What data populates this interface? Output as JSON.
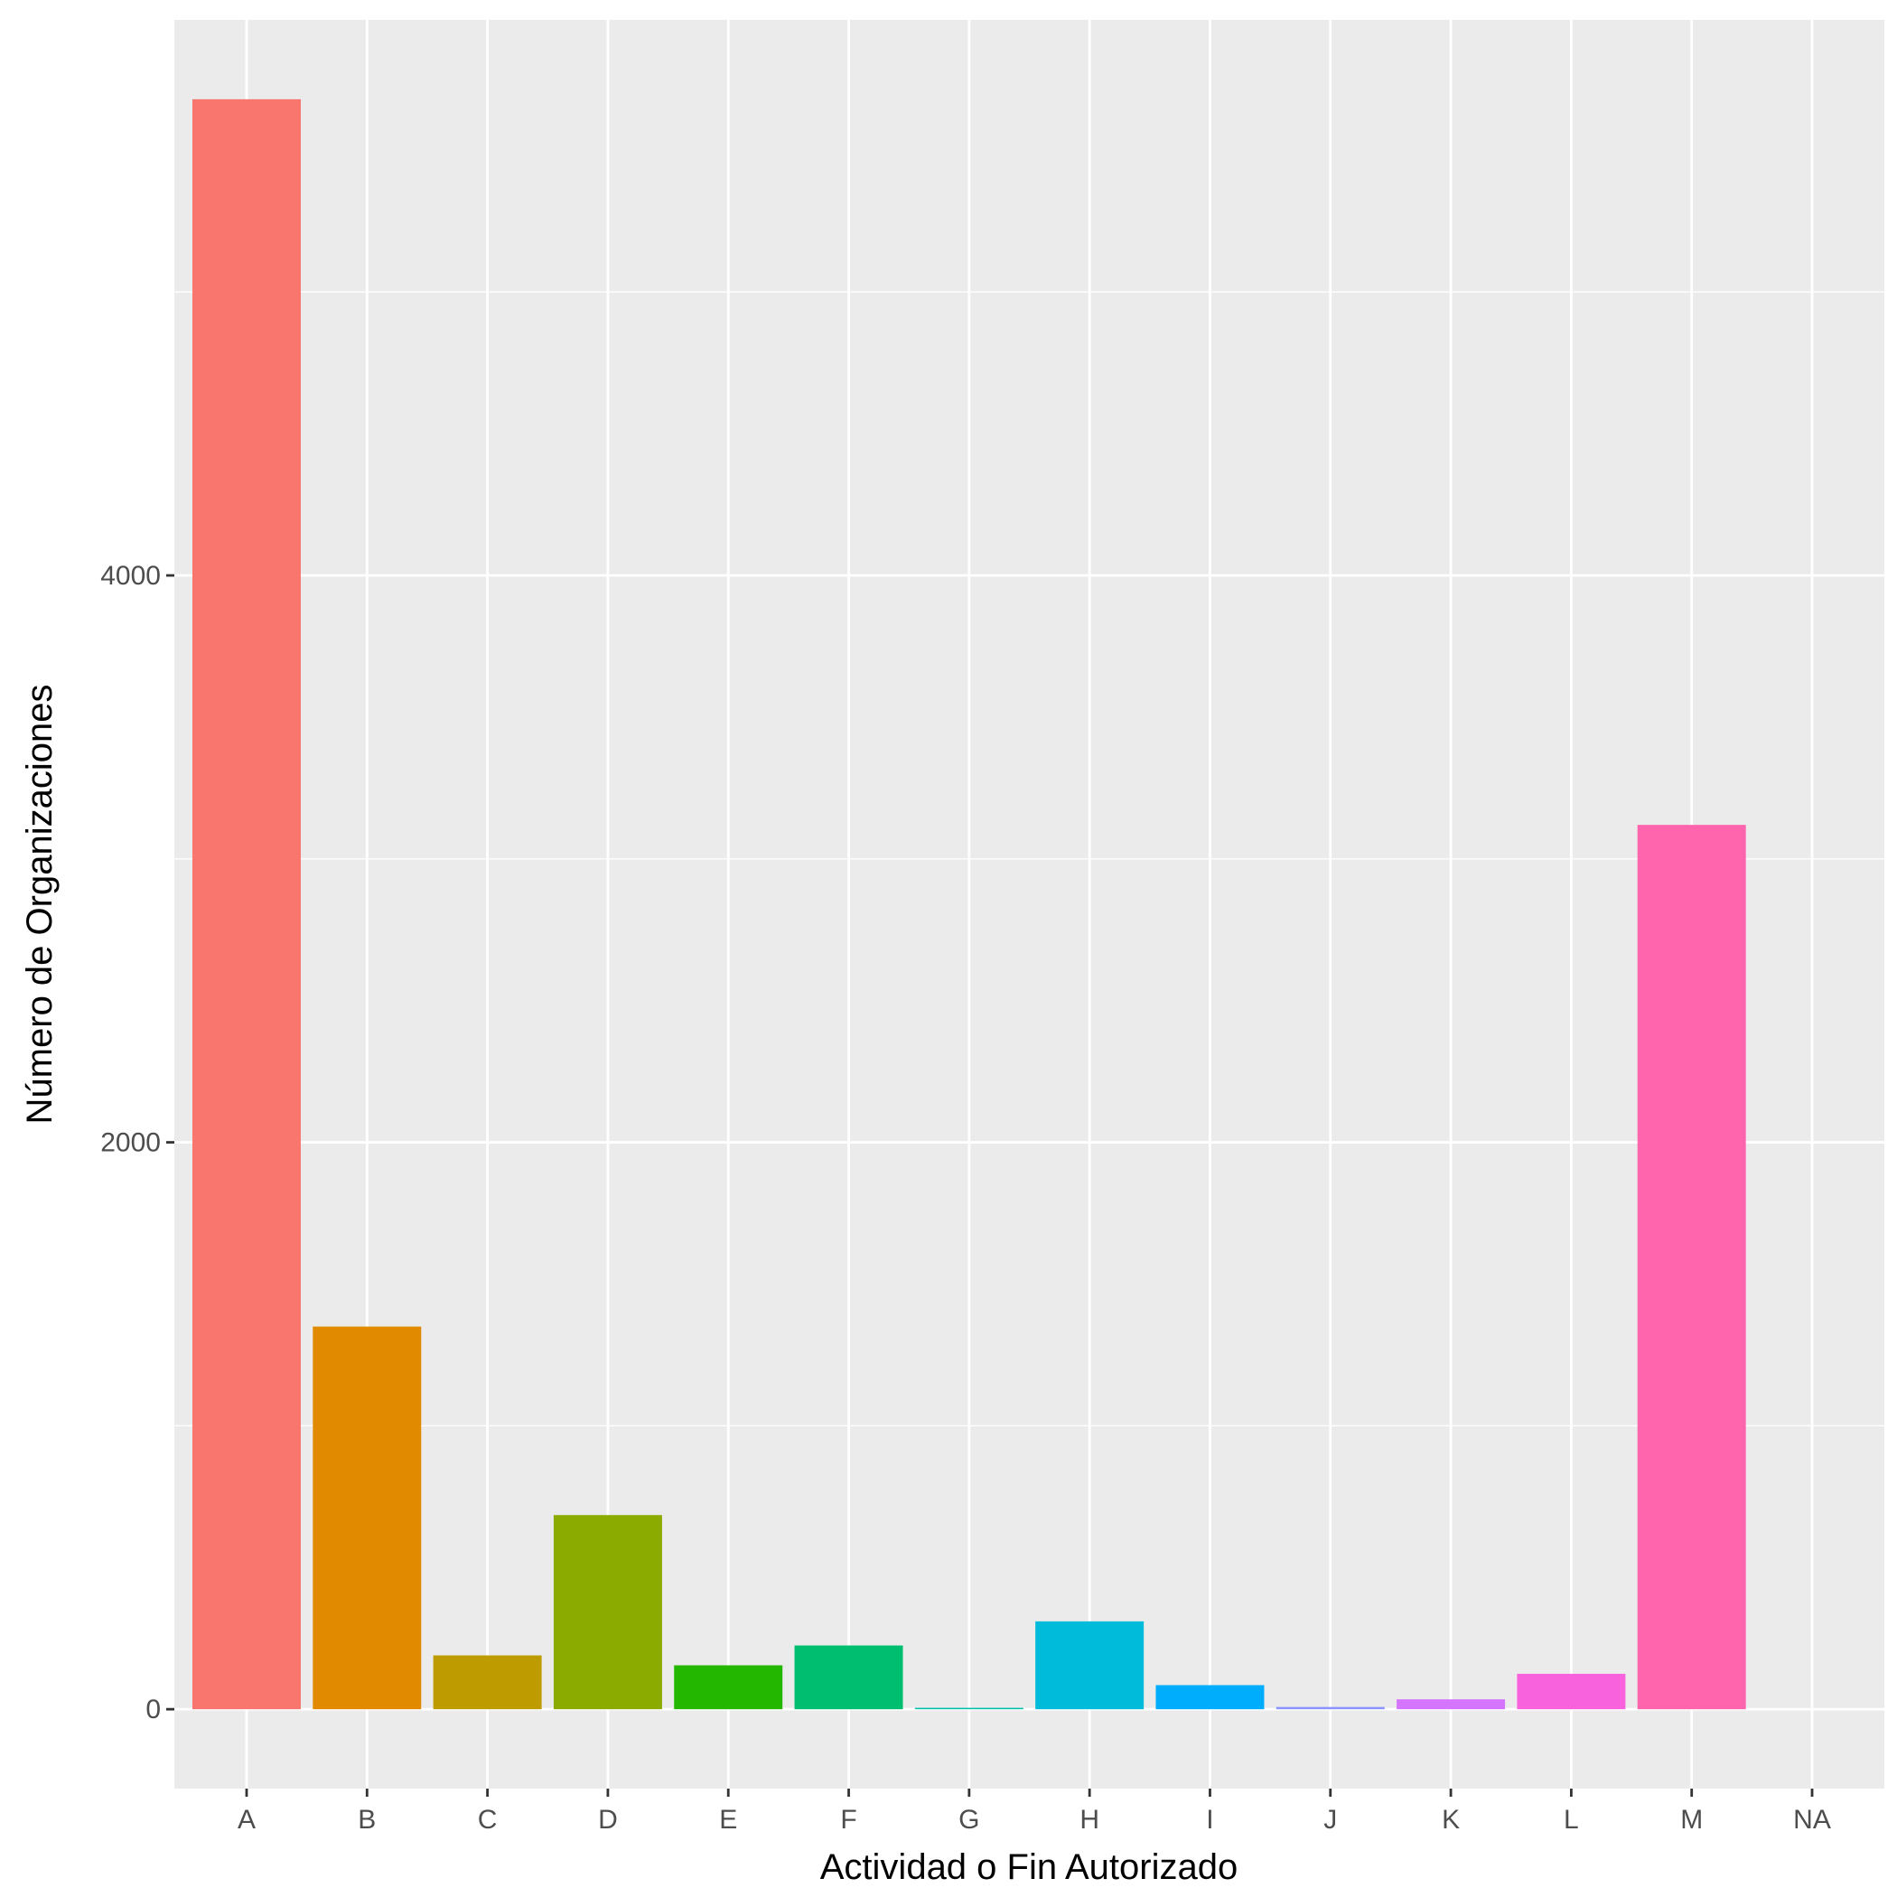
{
  "chart_data": {
    "type": "bar",
    "title": "",
    "xlabel": "Actividad o Fin Autorizado",
    "ylabel": "Número de Organizaciones",
    "categories": [
      "A",
      "B",
      "C",
      "D",
      "E",
      "F",
      "G",
      "H",
      "I",
      "J",
      "K",
      "L",
      "M",
      "NA"
    ],
    "values": [
      5680,
      1350,
      190,
      685,
      155,
      225,
      5,
      310,
      85,
      8,
      35,
      125,
      3120,
      0
    ],
    "colors": [
      "#F8766D",
      "#E18A00",
      "#BE9C00",
      "#8CAB00",
      "#24B700",
      "#00BE70",
      "#00C1AB",
      "#00BBDA",
      "#00ACFC",
      "#8B93FF",
      "#D575FE",
      "#F962DD",
      "#FF65AC",
      "#FF6C91"
    ],
    "ylim": [
      -280,
      5960
    ],
    "yticks": [
      0,
      2000,
      4000
    ],
    "y_minor_ticks": [
      1000,
      3000,
      5000
    ],
    "grid": true,
    "legend": "none",
    "panel_background": "#EBEBEB",
    "grid_color": "#FFFFFF"
  }
}
